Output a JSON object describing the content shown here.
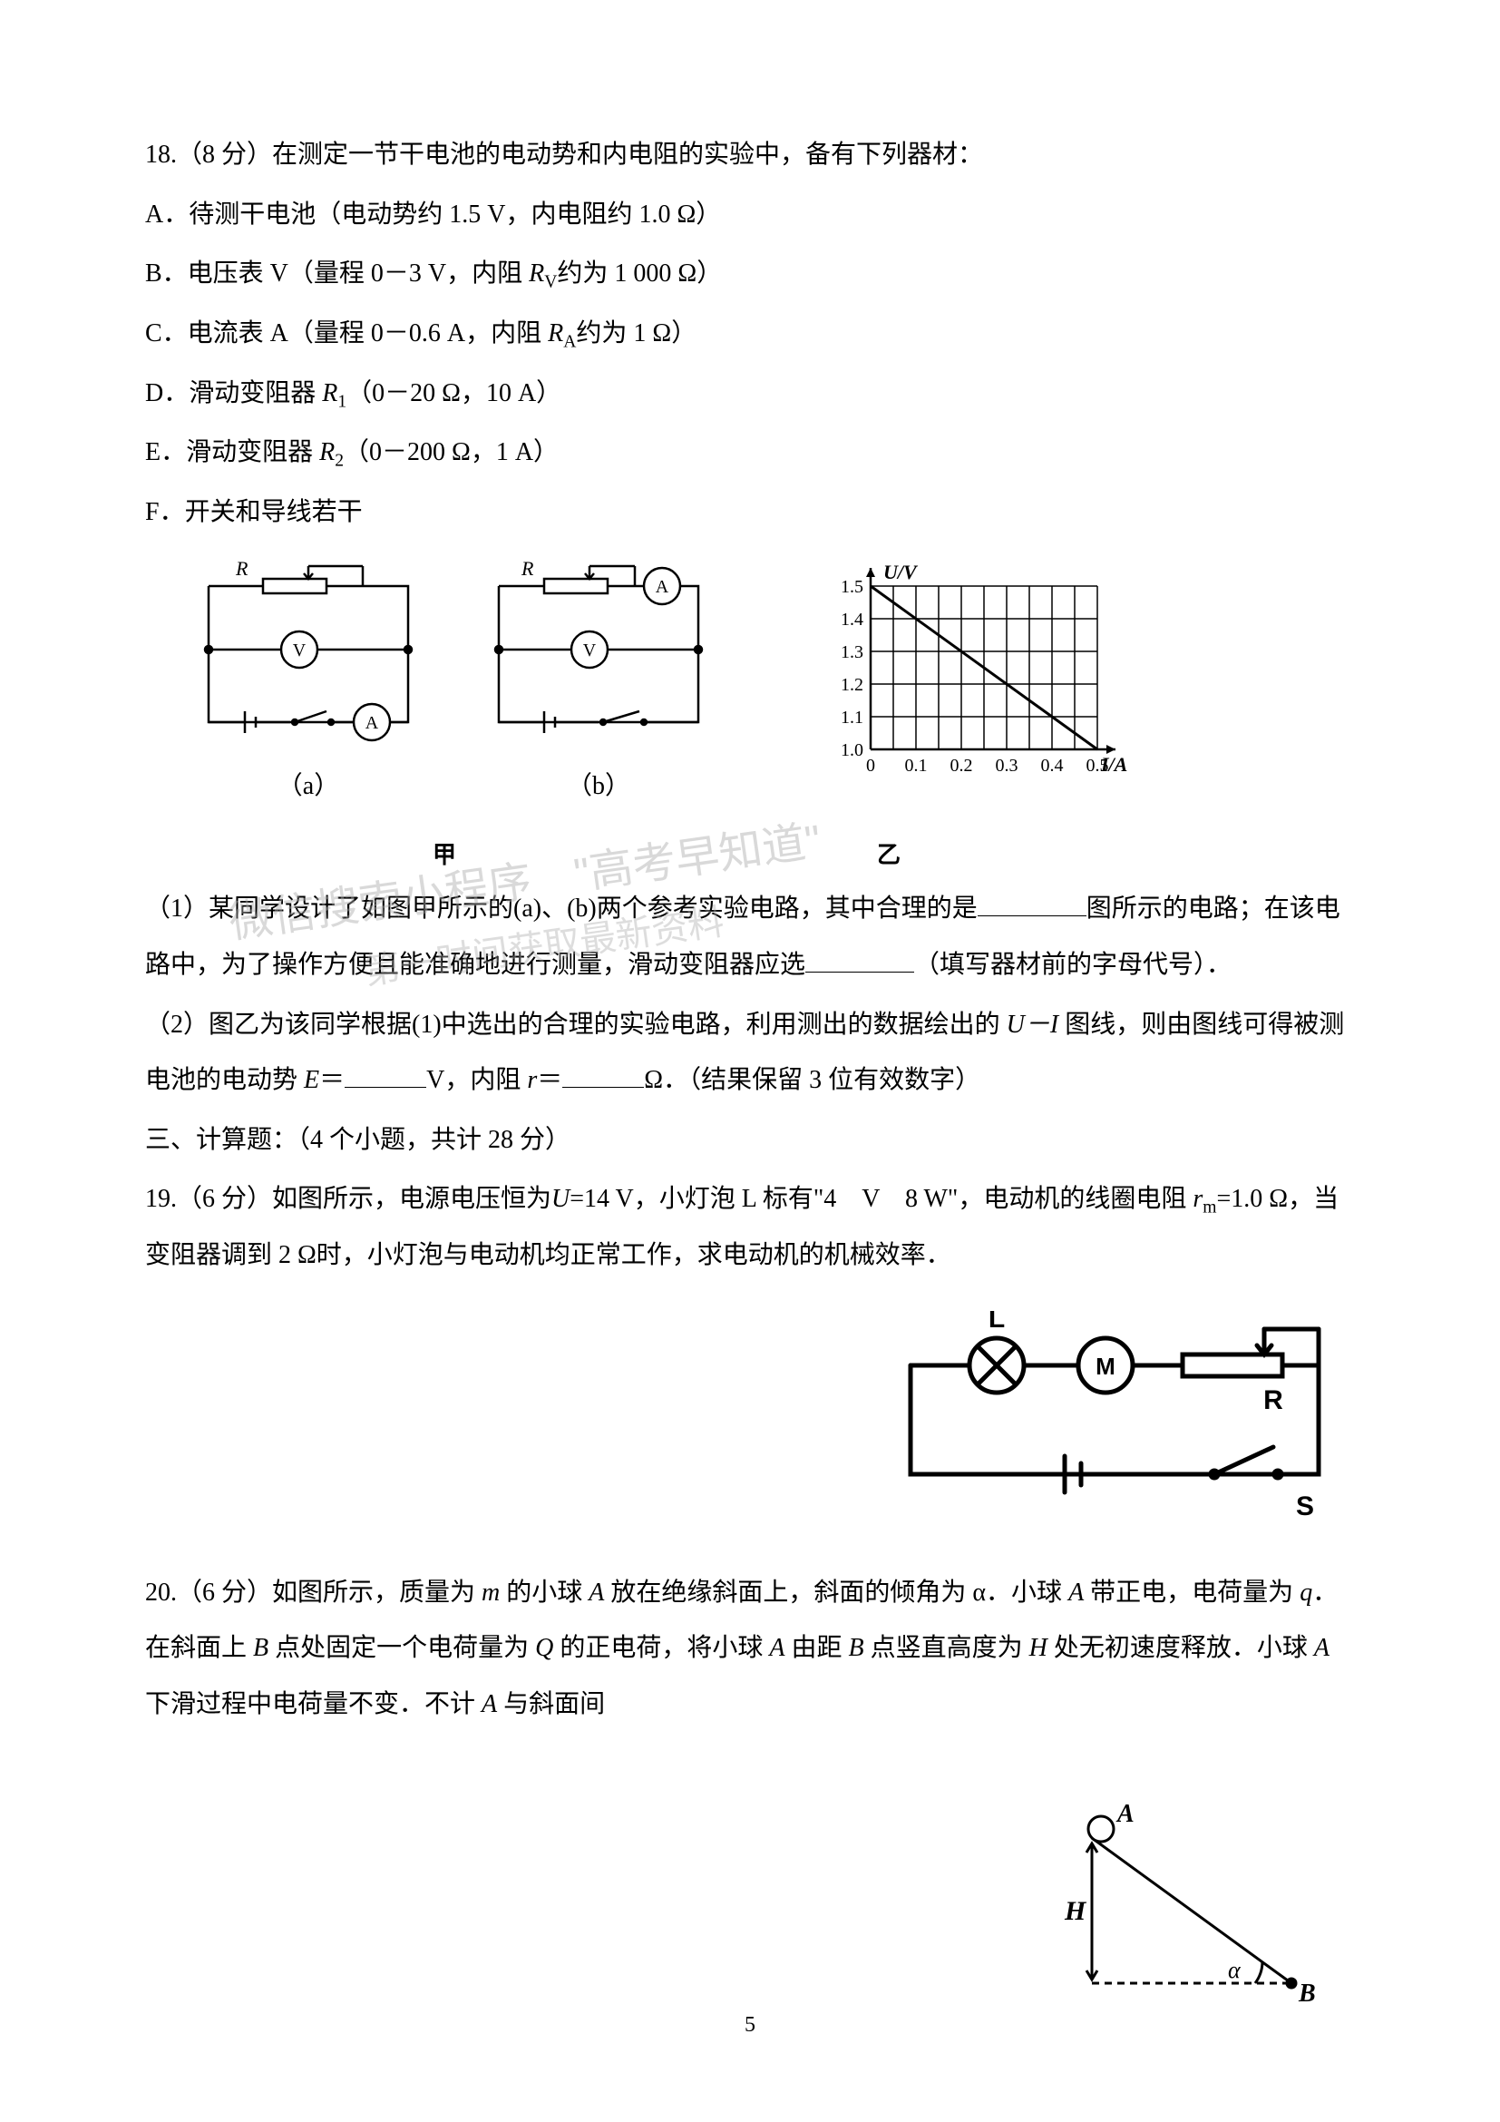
{
  "q18": {
    "stem": "18.（8 分）在测定一节干电池的电动势和内电阻的实验中，备有下列器材：",
    "A": "A．待测干电池（电动势约 1.5 V，内电阻约 1.0 Ω）",
    "B_pre": "B．电压表 V（量程 0－3 V，内阻 ",
    "B_R": "R",
    "B_Rsub": "V",
    "B_post": "约为 1 000 Ω）",
    "C_pre": "C．电流表 A（量程 0－0.6 A，内阻 ",
    "C_R": "R",
    "C_Rsub": "A",
    "C_post": "约为 1 Ω）",
    "D_pre": "D．滑动变阻器 ",
    "D_R": "R",
    "D_Rsub": "1",
    "D_post": "（0－20 Ω，10 A）",
    "E_pre": "E．滑动变阻器 ",
    "E_R": "R",
    "E_Rsub": "2",
    "E_post": "（0－200 Ω，1 A）",
    "F": "F．开关和导线若干",
    "circuit_a_label": "（a）",
    "circuit_b_label": "（b）",
    "caption_jia": "甲",
    "caption_yi": "乙",
    "R_label": "R",
    "part1_a": "（1）某同学设计了如图甲所示的(a)、(b)两个参考实验电路，其中合理的是",
    "part1_b": "图所示的电路；在该电路中，为了操作方便且能准确地进行测量，滑动变阻器应选",
    "part1_c": "（填写器材前的字母代号）．",
    "part2_a": "（2）图乙为该同学根据(1)中选出的合理的实验电路，利用测出的数据绘出的 ",
    "part2_UI": "U－I",
    "part2_b": " 图线，则由图线可得被测电池的电动势 ",
    "part2_E": "E",
    "part2_c": "＝",
    "part2_d": "V，内阻 ",
    "part2_r": "r",
    "part2_e": "＝",
    "part2_f": "Ω．（结果保留 3 位有效数字）"
  },
  "section3": "三、计算题：（4 个小题，共计 28 分）",
  "q19": {
    "a": "19.（6 分）如图所示，电源电压恒为",
    "U": "U",
    "b": "=14 V，小灯泡 L 标有\"4　V　8 W\"，电动机的线圈电阻 ",
    "r": "r",
    "rsub": "m",
    "c": "=1.0 Ω，当变阻器调到 2 Ω时，小灯泡与电动机均正常工作，求电动机的机械效率．",
    "labels": {
      "L": "L",
      "M": "M",
      "R": "R",
      "S": "S"
    }
  },
  "q20": {
    "a": "20.（6 分）如图所示，质量为 ",
    "m": "m",
    "b": " 的小球 ",
    "A": "A",
    "c": " 放在绝缘斜面上，斜面的倾角为 α．小球 ",
    "d": " 带正电，电荷量为 ",
    "q": "q",
    "e": "．在斜面上 ",
    "B": "B",
    "f": " 点处固定一个电荷量为 ",
    "Q": "Q",
    "g": " 的正电荷，将小球 ",
    "h": " 由距 ",
    "i": " 点竖直高度为 ",
    "H": "H",
    "j": " 处无初速度释放．小球 ",
    "k": " 下滑过程中电荷量不变．不计 ",
    "l": " 与斜面间",
    "labels": {
      "A": "A",
      "B": "B",
      "H": "H",
      "alpha": "α"
    }
  },
  "graph": {
    "ylabel": "U/V",
    "xlabel": "I/A",
    "y_ticks": [
      "1.0",
      "1.1",
      "1.2",
      "1.3",
      "1.4",
      "1.5"
    ],
    "x_ticks": [
      "0",
      "0.1",
      "0.2",
      "0.3",
      "0.4",
      "0.5"
    ],
    "line": {
      "x1": 0,
      "y1": 1.5,
      "x2": 0.5,
      "y2": 1.0
    },
    "colors": {
      "grid": "#000000",
      "axis": "#000000",
      "line": "#000000",
      "bg": "#ffffff"
    }
  },
  "page_number": "5",
  "watermark1": "微信搜索小程序　\"高考早知道\"",
  "watermark2": "第一时间获取最新资料"
}
